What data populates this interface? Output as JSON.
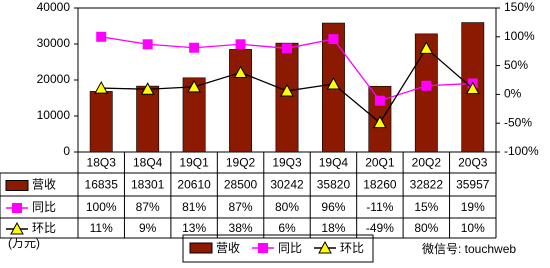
{
  "chart_data": {
    "type": "combo",
    "categories": [
      "18Q3",
      "18Q4",
      "19Q1",
      "19Q2",
      "19Q3",
      "19Q4",
      "20Q1",
      "20Q2",
      "20Q3"
    ],
    "series": [
      {
        "name": "营收",
        "type": "bar",
        "color": "#8b1a00",
        "values": [
          16835,
          18301,
          20610,
          28500,
          30242,
          35820,
          18260,
          32822,
          35957
        ]
      },
      {
        "name": "同比",
        "type": "line",
        "axis": "y2",
        "color": "#ff00ff",
        "marker": "square",
        "values": [
          100,
          87,
          81,
          87,
          80,
          96,
          -11,
          15,
          19
        ],
        "value_labels": [
          "100%",
          "87%",
          "81%",
          "87%",
          "80%",
          "96%",
          "-11%",
          "15%",
          "19%"
        ]
      },
      {
        "name": "环比",
        "type": "line",
        "axis": "y2",
        "color": "#000000",
        "marker_color": "#ffff00",
        "marker": "triangle",
        "values": [
          11,
          9,
          13,
          38,
          6,
          18,
          -49,
          80,
          10
        ],
        "value_labels": [
          "11%",
          "9%",
          "13%",
          "38%",
          "6%",
          "18%",
          "-49%",
          "80%",
          "10%"
        ]
      }
    ],
    "ylim": [
      0,
      40000
    ],
    "yticks": [
      0,
      10000,
      20000,
      30000,
      40000
    ],
    "y2lim": [
      -100,
      150
    ],
    "y2ticks": [
      {
        "value": -100,
        "label": "-100%"
      },
      {
        "value": -50,
        "label": "-50%"
      },
      {
        "value": 0,
        "label": "0%"
      },
      {
        "value": 50,
        "label": "50%"
      },
      {
        "value": 100,
        "label": "100%"
      },
      {
        "value": 150,
        "label": "150%"
      }
    ],
    "grid": false,
    "unit": "(万元)",
    "watermark": "微信号: touchweb"
  }
}
